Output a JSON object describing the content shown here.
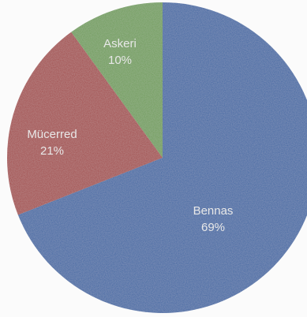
{
  "chart_data": {
    "type": "pie",
    "title": "",
    "slices": [
      {
        "label": "Bennas",
        "percent_label": "69%",
        "value": 69,
        "color": "#3e66a3"
      },
      {
        "label": "Mücerred",
        "percent_label": "21%",
        "value": 21,
        "color": "#a24a4a"
      },
      {
        "label": "Askeri",
        "percent_label": "10%",
        "value": 10,
        "color": "#6e9b58"
      }
    ],
    "start": "12 o'clock",
    "direction": "clockwise",
    "legend": "none"
  }
}
